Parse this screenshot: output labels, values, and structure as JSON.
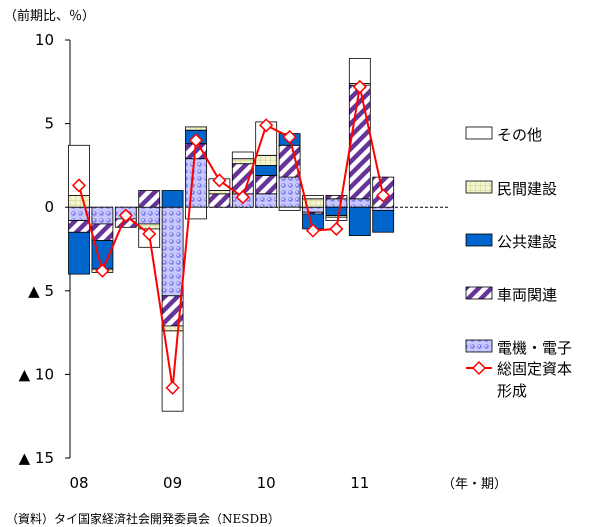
{
  "chart_data": {
    "type": "bar",
    "stacked": true,
    "overlay_line": true,
    "y_unit_label": "（前期比、％）",
    "x_unit_label": "（年・期）",
    "source": "（資料）タイ国家経済社会開発委員会（NESDB）",
    "ylim": [
      -15,
      10
    ],
    "y_ticks": [
      {
        "value": 10,
        "label": "10"
      },
      {
        "value": 5,
        "label": "5"
      },
      {
        "value": 0,
        "label": "0"
      },
      {
        "value": -5,
        "label": "▲ 5"
      },
      {
        "value": -10,
        "label": "▲ 10"
      },
      {
        "value": -15,
        "label": "▲ 15"
      }
    ],
    "x_ticks": [
      {
        "index": 0,
        "label": "08"
      },
      {
        "index": 4,
        "label": "09"
      },
      {
        "index": 8,
        "label": "10"
      },
      {
        "index": 12,
        "label": "11"
      }
    ],
    "n_periods": 14,
    "series": [
      {
        "name": "電機・電子",
        "pattern": "dots",
        "values": [
          -0.8,
          -1.0,
          -0.7,
          -1.0,
          -5.3,
          2.9,
          0.0,
          0.8,
          0.8,
          1.8,
          -0.3,
          0.5,
          0.5,
          -0.2
        ]
      },
      {
        "name": "車両関連",
        "pattern": "diag",
        "values": [
          -0.7,
          -1.0,
          -0.5,
          1.0,
          -1.8,
          0.9,
          0.8,
          1.8,
          1.1,
          1.9,
          -0.1,
          0.2,
          6.8,
          1.8
        ]
      },
      {
        "name": "公共建設",
        "pattern": "solid",
        "values": [
          -2.5,
          -1.7,
          0.0,
          0.0,
          1.0,
          0.8,
          0.0,
          0.0,
          0.6,
          0.7,
          -0.9,
          -0.5,
          -1.7,
          -1.3
        ]
      },
      {
        "name": "民間建設",
        "pattern": "grid",
        "values": [
          0.7,
          -0.2,
          0.0,
          -0.3,
          -0.3,
          0.2,
          0.2,
          0.3,
          0.6,
          0.0,
          0.5,
          -0.1,
          0.1,
          0.0
        ]
      },
      {
        "name": "その他",
        "pattern": "white",
        "values": [
          3.0,
          0.0,
          0.0,
          -1.1,
          -4.8,
          -0.7,
          0.7,
          0.4,
          2.0,
          -0.2,
          0.2,
          -0.2,
          1.5,
          0.0
        ]
      }
    ],
    "line": {
      "name": "総固定資本形成",
      "values": [
        1.3,
        -3.8,
        -0.5,
        -1.6,
        -10.8,
        4.0,
        1.6,
        0.6,
        4.9,
        4.2,
        -1.4,
        -1.3,
        7.2,
        0.7
      ]
    },
    "legend_order": [
      "その他",
      "民間建設",
      "公共建設",
      "車両関連",
      "電機・電子"
    ],
    "legend_line_label_lines": [
      "総固定資本",
      "形成"
    ],
    "colors": {
      "solid": "#0066cc",
      "diag": "#663399",
      "dots": "#9999ff",
      "grid": "#e6e6b3",
      "line": "#ff0000"
    }
  }
}
